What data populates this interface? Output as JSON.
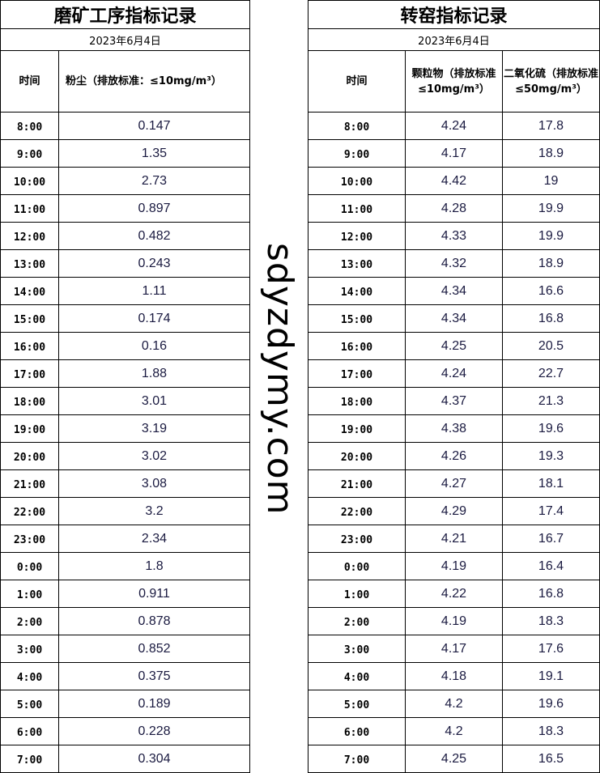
{
  "left": {
    "title": "磨矿工序指标记录",
    "date": "2023年6月4日",
    "col_time": "时间",
    "col_dust": "粉尘（排放标准：≤10mg/m³）",
    "rows": [
      [
        "8:00",
        "0.147"
      ],
      [
        "9:00",
        "1.35"
      ],
      [
        "10:00",
        "2.73"
      ],
      [
        "11:00",
        "0.897"
      ],
      [
        "12:00",
        "0.482"
      ],
      [
        "13:00",
        "0.243"
      ],
      [
        "14:00",
        "1.11"
      ],
      [
        "15:00",
        "0.174"
      ],
      [
        "16:00",
        "0.16"
      ],
      [
        "17:00",
        "1.88"
      ],
      [
        "18:00",
        "3.01"
      ],
      [
        "19:00",
        "3.19"
      ],
      [
        "20:00",
        "3.02"
      ],
      [
        "21:00",
        "3.08"
      ],
      [
        "22:00",
        "3.2"
      ],
      [
        "23:00",
        "2.34"
      ],
      [
        "0:00",
        "1.8"
      ],
      [
        "1:00",
        "0.911"
      ],
      [
        "2:00",
        "0.878"
      ],
      [
        "3:00",
        "0.852"
      ],
      [
        "4:00",
        "0.375"
      ],
      [
        "5:00",
        "0.189"
      ],
      [
        "6:00",
        "0.228"
      ],
      [
        "7:00",
        "0.304"
      ]
    ]
  },
  "right": {
    "title": "转窑指标记录",
    "date": "2023年6月4日",
    "col_time": "时间",
    "col_pm": "颗粒物（排放标准≤10mg/m³）",
    "col_so2": "二氧化硫（排放标准≤50mg/m³）",
    "rows": [
      [
        "8:00",
        "4.24",
        "17.8"
      ],
      [
        "9:00",
        "4.17",
        "18.9"
      ],
      [
        "10:00",
        "4.42",
        "19"
      ],
      [
        "11:00",
        "4.28",
        "19.9"
      ],
      [
        "12:00",
        "4.33",
        "19.9"
      ],
      [
        "13:00",
        "4.32",
        "18.9"
      ],
      [
        "14:00",
        "4.34",
        "16.6"
      ],
      [
        "15:00",
        "4.34",
        "16.8"
      ],
      [
        "16:00",
        "4.25",
        "20.5"
      ],
      [
        "17:00",
        "4.24",
        "22.7"
      ],
      [
        "18:00",
        "4.37",
        "21.3"
      ],
      [
        "19:00",
        "4.38",
        "19.6"
      ],
      [
        "20:00",
        "4.26",
        "19.3"
      ],
      [
        "21:00",
        "4.27",
        "18.1"
      ],
      [
        "22:00",
        "4.29",
        "17.4"
      ],
      [
        "23:00",
        "4.21",
        "16.7"
      ],
      [
        "0:00",
        "4.19",
        "16.4"
      ],
      [
        "1:00",
        "4.22",
        "16.8"
      ],
      [
        "2:00",
        "4.19",
        "18.3"
      ],
      [
        "3:00",
        "4.17",
        "17.6"
      ],
      [
        "4:00",
        "4.18",
        "19.1"
      ],
      [
        "5:00",
        "4.2",
        "19.6"
      ],
      [
        "6:00",
        "4.2",
        "18.3"
      ],
      [
        "7:00",
        "4.25",
        "16.5"
      ]
    ]
  },
  "watermark": "sdyzdymy.com"
}
